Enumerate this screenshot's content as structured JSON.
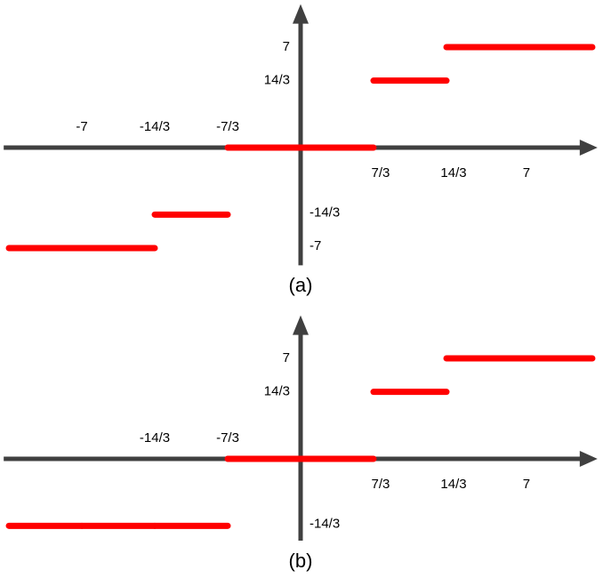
{
  "chart_data": [
    {
      "type": "step",
      "caption": "(a)",
      "xlim": [
        -9.5,
        9.5
      ],
      "ylim": [
        -8.2,
        10
      ],
      "xticks": [
        -7,
        {
          "value": -4.667,
          "label": "-14/3"
        },
        {
          "value": -2.333,
          "label": "-7/3"
        },
        {
          "value": 2.333,
          "label": "7/3"
        },
        {
          "value": 4.667,
          "label": "14/3"
        },
        7
      ],
      "yticks": [
        7,
        {
          "value": 4.667,
          "label": "14/3"
        },
        {
          "value": -4.667,
          "label": "-14/3"
        },
        -7
      ],
      "series": [
        {
          "color": "#ff0000",
          "x": [
            [
              -9.333,
              -7
            ],
            [
              -7,
              -4.667
            ],
            [
              -4.667,
              -2.333
            ],
            [
              -2.333,
              2.333
            ],
            [
              2.333,
              4.667
            ],
            [
              4.667,
              7
            ],
            [
              7,
              9.333
            ]
          ],
          "values": [
            -7,
            -7,
            -4.667,
            0,
            4.667,
            7,
            7
          ]
        }
      ]
    },
    {
      "type": "step",
      "caption": "(b)",
      "xlim": [
        -9.5,
        9.5
      ],
      "ylim": [
        -5.7,
        10
      ],
      "xticks": [
        {
          "value": -4.667,
          "label": "-14/3"
        },
        {
          "value": -2.333,
          "label": "-7/3"
        },
        {
          "value": 2.333,
          "label": "7/3"
        },
        {
          "value": 4.667,
          "label": "14/3"
        },
        7
      ],
      "yticks": [
        7,
        {
          "value": 4.667,
          "label": "14/3"
        },
        {
          "value": -4.667,
          "label": "-14/3"
        }
      ],
      "series": [
        {
          "color": "#ff0000",
          "x": [
            [
              -9.333,
              -7
            ],
            [
              -7,
              -4.667
            ],
            [
              -4.667,
              -2.333
            ],
            [
              -2.333,
              2.333
            ],
            [
              2.333,
              4.667
            ],
            [
              4.667,
              7
            ],
            [
              7,
              9.333
            ]
          ],
          "values": [
            -4.667,
            -4.667,
            -4.667,
            0,
            4.667,
            7,
            7
          ]
        }
      ]
    }
  ]
}
